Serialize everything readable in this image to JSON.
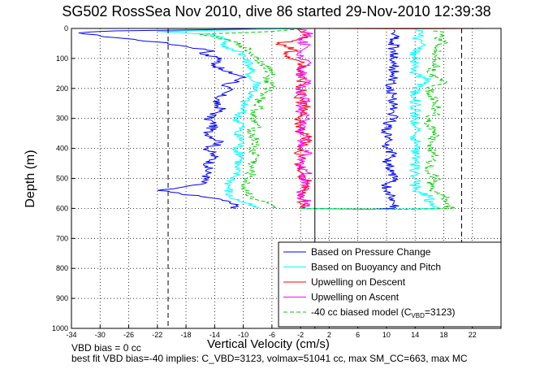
{
  "chart_data": {
    "type": "line",
    "title": "SG502 RossSea Nov 2010, dive 86 started 29-Nov-2010 12:39:38",
    "xlabel": "Vertical Velocity (cm/s)",
    "ylabel": "Depth (m)",
    "xlim": [
      -34,
      26
    ],
    "ylim": [
      1000,
      0
    ],
    "y_reversed": true,
    "grid": true,
    "legend_position": "bottom-right",
    "xticks": [
      "-34",
      "-30",
      "-26",
      "-22",
      "-18",
      "-14",
      "-10",
      "-6",
      "-2",
      "2",
      "6",
      "10",
      "14",
      "18",
      "22"
    ],
    "yticks": [
      "0",
      "100",
      "200",
      "300",
      "400",
      "500",
      "600",
      "700",
      "800",
      "900",
      "1000"
    ],
    "vlines": [
      {
        "x": -20.5,
        "style": "dashed",
        "color": "#000000"
      },
      {
        "x": 0,
        "style": "solid",
        "color": "#000000"
      },
      {
        "x": 20.5,
        "style": "dashed",
        "color": "#000000"
      }
    ],
    "series": [
      {
        "name": "Based on Pressure Change",
        "color": "#0000ff",
        "dash": "",
        "descent_points": [
          [
            -2,
            0
          ],
          [
            -12,
            3
          ],
          [
            -28,
            8
          ],
          [
            -33,
            15
          ],
          [
            -30,
            25
          ],
          [
            -22,
            45
          ],
          [
            -18,
            60
          ],
          [
            -14,
            75
          ],
          [
            -16,
            85
          ],
          [
            -13,
            100
          ],
          [
            -14,
            120
          ],
          [
            -13,
            140
          ],
          [
            -10,
            160
          ],
          [
            -11,
            180
          ],
          [
            -13,
            190
          ],
          [
            -12,
            200
          ],
          [
            -13,
            220
          ],
          [
            -14,
            250
          ],
          [
            -13,
            270
          ],
          [
            -15,
            300
          ],
          [
            -14,
            320
          ],
          [
            -15,
            350
          ],
          [
            -13,
            380
          ],
          [
            -15,
            400
          ],
          [
            -14,
            430
          ],
          [
            -15,
            460
          ],
          [
            -15,
            490
          ],
          [
            -16,
            520
          ],
          [
            -22,
            540
          ],
          [
            -16,
            560
          ],
          [
            -13,
            570
          ],
          [
            -11,
            590
          ],
          [
            -11,
            600
          ]
        ],
        "ascent_points": [
          [
            -2,
            600
          ],
          [
            8,
            603
          ],
          [
            11,
            600
          ],
          [
            11,
            580
          ],
          [
            11,
            560
          ],
          [
            10,
            540
          ],
          [
            10,
            520
          ],
          [
            11,
            500
          ],
          [
            11,
            480
          ],
          [
            10,
            450
          ],
          [
            11,
            420
          ],
          [
            10,
            400
          ],
          [
            10,
            380
          ],
          [
            10,
            350
          ],
          [
            10,
            320
          ],
          [
            11,
            300
          ],
          [
            11,
            280
          ],
          [
            11,
            250
          ],
          [
            11,
            220
          ],
          [
            10,
            200
          ],
          [
            11,
            180
          ],
          [
            11,
            150
          ],
          [
            11,
            120
          ],
          [
            11,
            90
          ],
          [
            11,
            70
          ],
          [
            11,
            50
          ],
          [
            11,
            30
          ],
          [
            11,
            15
          ],
          [
            11,
            5
          ]
        ]
      },
      {
        "name": "Based on Buoyancy and Pitch",
        "color": "#00ffff",
        "dash": "",
        "descent_points": [
          [
            -2,
            0
          ],
          [
            -10,
            4
          ],
          [
            -22,
            10
          ],
          [
            -14,
            20
          ],
          [
            -12,
            40
          ],
          [
            -13,
            60
          ],
          [
            -10,
            80
          ],
          [
            -10,
            100
          ],
          [
            -9,
            120
          ],
          [
            -9,
            150
          ],
          [
            -9,
            170
          ],
          [
            -8,
            180
          ],
          [
            -8,
            200
          ],
          [
            -9,
            220
          ],
          [
            -10,
            250
          ],
          [
            -10,
            270
          ],
          [
            -11,
            300
          ],
          [
            -10,
            320
          ],
          [
            -11,
            350
          ],
          [
            -10,
            380
          ],
          [
            -11,
            400
          ],
          [
            -10,
            430
          ],
          [
            -11,
            460
          ],
          [
            -11,
            490
          ],
          [
            -12,
            520
          ],
          [
            -12,
            560
          ],
          [
            -10,
            580
          ],
          [
            -8,
            600
          ]
        ],
        "ascent_points": [
          [
            -2,
            600
          ],
          [
            10,
            603
          ],
          [
            17,
            600
          ],
          [
            16,
            580
          ],
          [
            16,
            560
          ],
          [
            14,
            540
          ],
          [
            14,
            520
          ],
          [
            14,
            500
          ],
          [
            14,
            480
          ],
          [
            14,
            450
          ],
          [
            14,
            420
          ],
          [
            14,
            400
          ],
          [
            14,
            380
          ],
          [
            14,
            350
          ],
          [
            14,
            320
          ],
          [
            14,
            300
          ],
          [
            14,
            280
          ],
          [
            14,
            250
          ],
          [
            14,
            220
          ],
          [
            14,
            200
          ],
          [
            16,
            175
          ],
          [
            14,
            150
          ],
          [
            14,
            120
          ],
          [
            14,
            90
          ],
          [
            14,
            70
          ],
          [
            15,
            50
          ],
          [
            14,
            30
          ],
          [
            15,
            15
          ],
          [
            14,
            5
          ]
        ]
      },
      {
        "name": "Upwelling on Descent",
        "color": "#ff0000",
        "dash": "",
        "points": [
          [
            -2,
            600
          ],
          [
            -2,
            560
          ],
          [
            -1,
            520
          ],
          [
            -2,
            480
          ],
          [
            -2,
            440
          ],
          [
            -2,
            400
          ],
          [
            -1,
            370
          ],
          [
            -2,
            340
          ],
          [
            -2,
            300
          ],
          [
            -1,
            270
          ],
          [
            -2,
            240
          ],
          [
            -2,
            200
          ],
          [
            -2,
            170
          ],
          [
            -2,
            140
          ],
          [
            -2,
            110
          ],
          [
            -4,
            90
          ],
          [
            -3,
            70
          ],
          [
            -5,
            50
          ],
          [
            -1,
            30
          ],
          [
            -2,
            10
          ],
          [
            -2,
            0
          ]
        ],
        "points2": [
          [
            0,
            0
          ],
          [
            12,
            1
          ],
          [
            24,
            0
          ]
        ]
      },
      {
        "name": "Upwelling on Ascent",
        "color": "#ff00ff",
        "dash": "",
        "points": [
          [
            -2,
            600
          ],
          [
            -1,
            580
          ],
          [
            -2,
            560
          ],
          [
            -2,
            540
          ],
          [
            -1,
            520
          ],
          [
            -2,
            500
          ],
          [
            -1,
            480
          ],
          [
            -2,
            460
          ],
          [
            -2,
            440
          ],
          [
            -1,
            420
          ],
          [
            -2,
            400
          ],
          [
            -2,
            380
          ],
          [
            -1,
            360
          ],
          [
            -2,
            340
          ],
          [
            -2,
            320
          ],
          [
            -1,
            300
          ],
          [
            -2,
            280
          ],
          [
            -2,
            260
          ],
          [
            -1,
            240
          ],
          [
            -2,
            220
          ],
          [
            -2,
            200
          ],
          [
            -1,
            180
          ],
          [
            -2,
            160
          ],
          [
            -2,
            140
          ],
          [
            -1,
            120
          ],
          [
            -2,
            100
          ],
          [
            -2,
            80
          ],
          [
            -1,
            60
          ],
          [
            -2,
            40
          ],
          [
            -1,
            20
          ],
          [
            -2,
            0
          ]
        ]
      },
      {
        "name": "-40 cc biased model (C_VBD=3123)",
        "color": "#00cc00",
        "dash": "5,3",
        "descent_points": [
          [
            -2,
            0
          ],
          [
            -6,
            10
          ],
          [
            -16,
            20
          ],
          [
            -12,
            40
          ],
          [
            -10,
            60
          ],
          [
            -9,
            80
          ],
          [
            -8,
            100
          ],
          [
            -7,
            120
          ],
          [
            -6,
            150
          ],
          [
            -7,
            170
          ],
          [
            -6,
            190
          ],
          [
            -7,
            220
          ],
          [
            -8,
            250
          ],
          [
            -8,
            270
          ],
          [
            -9,
            300
          ],
          [
            -8,
            320
          ],
          [
            -9,
            350
          ],
          [
            -8,
            380
          ],
          [
            -9,
            400
          ],
          [
            -8,
            430
          ],
          [
            -9,
            460
          ],
          [
            -9,
            490
          ],
          [
            -10,
            520
          ],
          [
            -9,
            560
          ],
          [
            -6,
            590
          ],
          [
            -5,
            600
          ]
        ],
        "ascent_points": [
          [
            -2,
            600
          ],
          [
            12,
            603
          ],
          [
            19,
            600
          ],
          [
            18,
            580
          ],
          [
            18,
            560
          ],
          [
            16,
            540
          ],
          [
            16,
            520
          ],
          [
            17,
            500
          ],
          [
            16,
            480
          ],
          [
            16,
            450
          ],
          [
            17,
            420
          ],
          [
            16,
            400
          ],
          [
            16,
            380
          ],
          [
            17,
            350
          ],
          [
            16,
            320
          ],
          [
            16,
            300
          ],
          [
            17,
            280
          ],
          [
            17,
            250
          ],
          [
            16,
            220
          ],
          [
            16,
            200
          ],
          [
            18,
            175
          ],
          [
            16,
            150
          ],
          [
            17,
            120
          ],
          [
            17,
            90
          ],
          [
            17,
            70
          ],
          [
            18,
            50
          ],
          [
            17,
            30
          ],
          [
            18,
            15
          ],
          [
            17,
            5
          ]
        ]
      }
    ],
    "legend": [
      {
        "label": "Based on Pressure Change",
        "color": "#0000ff",
        "dash": ""
      },
      {
        "label": "Based on Buoyancy and Pitch",
        "color": "#00ffff",
        "dash": ""
      },
      {
        "label": "Upwelling on Descent",
        "color": "#ff0000",
        "dash": ""
      },
      {
        "label": "Upwelling on Ascent",
        "color": "#ff00ff",
        "dash": ""
      },
      {
        "label": "-40 cc biased model (C",
        "sub": "VBD",
        "tail": "=3123)",
        "color": "#00cc00",
        "dash": "5,3"
      }
    ]
  },
  "footer": {
    "line1": "VBD bias = 0 cc",
    "line2": "best fit VBD bias=-40 implies: C_VBD=3123, volmax=51041 cc, max SM_CC=663, max MC"
  }
}
